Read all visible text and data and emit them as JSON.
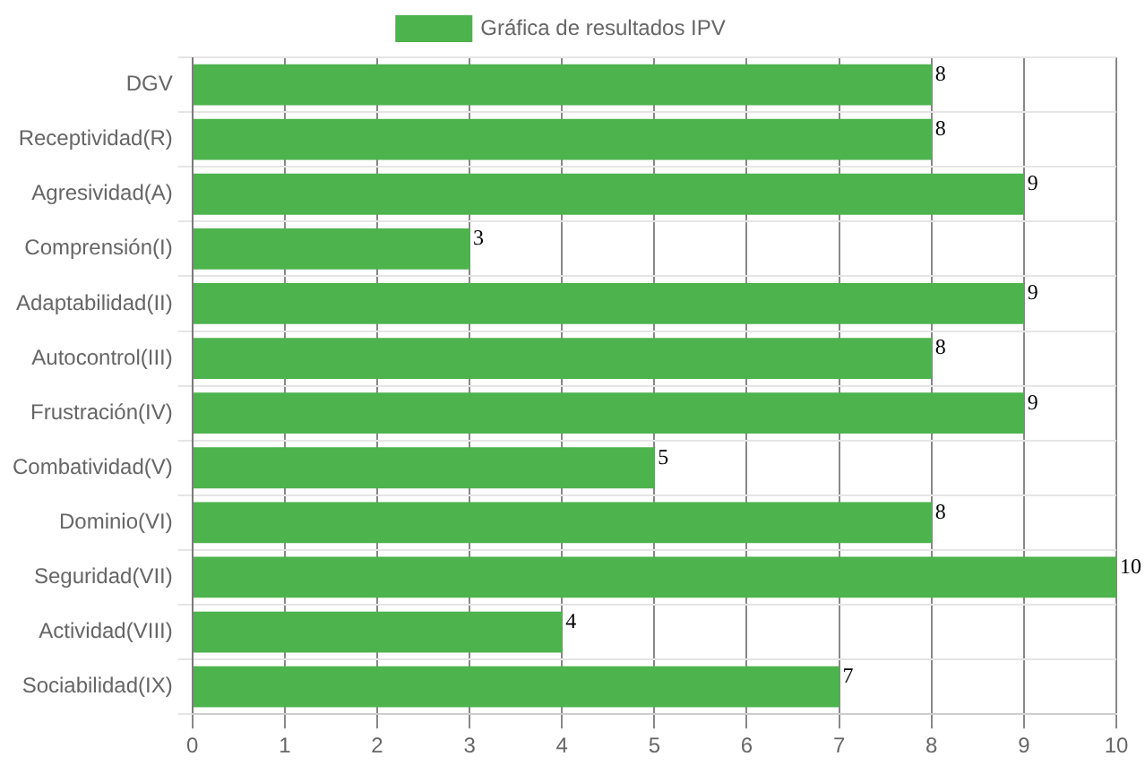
{
  "chart_data": {
    "type": "bar",
    "orientation": "horizontal",
    "categories": [
      "DGV",
      "Receptividad(R)",
      "Agresividad(A)",
      "Comprensión(I)",
      "Adaptabilidad(II)",
      "Autocontrol(III)",
      "Frustración(IV)",
      "Combatividad(V)",
      "Dominio(VI)",
      "Seguridad(VII)",
      "Actividad(VIII)",
      "Sociabilidad(IX)"
    ],
    "series": [
      {
        "name": "Gráfica de resultados IPV",
        "color": "#4db34d",
        "values": [
          8,
          8,
          9,
          3,
          9,
          8,
          9,
          5,
          8,
          10,
          4,
          7
        ]
      }
    ],
    "xlim": [
      0,
      10
    ],
    "xticks": [
      0,
      1,
      2,
      3,
      4,
      5,
      6,
      7,
      8,
      9,
      10
    ],
    "grid": true,
    "legend": "top",
    "data_labels": true
  }
}
